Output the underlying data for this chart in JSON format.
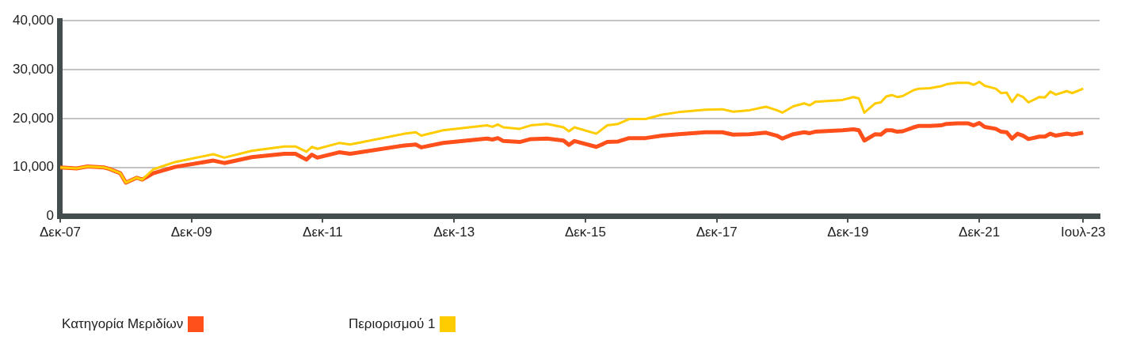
{
  "chart_data": {
    "type": "line",
    "x": [
      "2007-12",
      "2008-03",
      "2008-05",
      "2008-08",
      "2008-09",
      "2008-11",
      "2008-12",
      "2009-02",
      "2009-03",
      "2009-05",
      "2009-09",
      "2010-04",
      "2010-06",
      "2010-11",
      "2011-05",
      "2011-07",
      "2011-09",
      "2011-10",
      "2011-11",
      "2012-03",
      "2012-05",
      "2013-03",
      "2013-05",
      "2013-06",
      "2013-10",
      "2014-06",
      "2014-07",
      "2014-08",
      "2014-09",
      "2014-12",
      "2015-02",
      "2015-05",
      "2015-08",
      "2015-09",
      "2015-10",
      "2016-02",
      "2016-04",
      "2016-06",
      "2016-08",
      "2016-11",
      "2017-02",
      "2017-05",
      "2017-10",
      "2018-01",
      "2018-03",
      "2018-06",
      "2018-09",
      "2018-11",
      "2018-12",
      "2019-02",
      "2019-04",
      "2019-05",
      "2019-06",
      "2019-11",
      "2020-01",
      "2020-02",
      "2020-03",
      "2020-05",
      "2020-06",
      "2020-07",
      "2020-08",
      "2020-09",
      "2020-10",
      "2020-12",
      "2021-01",
      "2021-03",
      "2021-05",
      "2021-06",
      "2021-08",
      "2021-10",
      "2021-11",
      "2021-12",
      "2022-01",
      "2022-03",
      "2022-04",
      "2022-05",
      "2022-06",
      "2022-07",
      "2022-08",
      "2022-09",
      "2022-11",
      "2022-12",
      "2023-01",
      "2023-02",
      "2023-04",
      "2023-05",
      "2023-07"
    ],
    "series": [
      {
        "name": "Κατηγορία Μεριδίων",
        "color": "#ff4f1a",
        "values": [
          10000,
          9800,
          10200,
          10000,
          9700,
          8800,
          6900,
          7900,
          7500,
          8800,
          10100,
          11400,
          10900,
          12100,
          12800,
          12800,
          11600,
          12600,
          12000,
          13100,
          12800,
          14500,
          14700,
          14100,
          15000,
          15900,
          15700,
          16000,
          15400,
          15200,
          15800,
          15900,
          15500,
          14600,
          15400,
          14200,
          15200,
          15300,
          16000,
          16000,
          16500,
          16800,
          17200,
          17200,
          16700,
          16800,
          17100,
          16500,
          15900,
          16800,
          17200,
          17000,
          17300,
          17600,
          17800,
          17600,
          15500,
          16800,
          16700,
          17600,
          17600,
          17300,
          17400,
          18200,
          18500,
          18500,
          18600,
          18900,
          19000,
          19000,
          18600,
          19100,
          18300,
          17900,
          17300,
          17200,
          15900,
          16900,
          16500,
          15800,
          16300,
          16300,
          16900,
          16500,
          16900,
          16700,
          17100
        ]
      },
      {
        "name": "Περιορισμού 1",
        "color": "#ffcc00",
        "values": [
          10000,
          9800,
          10200,
          10000,
          9700,
          8800,
          6900,
          7900,
          7500,
          9600,
          11100,
          12700,
          12000,
          13400,
          14300,
          14300,
          13200,
          14200,
          13800,
          15000,
          14700,
          16900,
          17200,
          16500,
          17600,
          18600,
          18300,
          18800,
          18200,
          17900,
          18600,
          18900,
          18200,
          17400,
          18200,
          16900,
          18600,
          18900,
          19900,
          19900,
          20800,
          21300,
          21800,
          21900,
          21400,
          21700,
          22400,
          21700,
          21200,
          22500,
          23100,
          22700,
          23400,
          23800,
          24400,
          24100,
          21200,
          23100,
          23300,
          24500,
          24800,
          24400,
          24600,
          25800,
          26100,
          26200,
          26600,
          27000,
          27300,
          27300,
          26900,
          27500,
          26700,
          26100,
          25200,
          25300,
          23400,
          24900,
          24400,
          23300,
          24400,
          24300,
          25500,
          24900,
          25600,
          25200,
          26100
        ]
      }
    ],
    "xlim": [
      "2007-12",
      "2023-10"
    ],
    "xticks": [
      {
        "value": "2007-12",
        "label": "Δεκ-07"
      },
      {
        "value": "2009-12",
        "label": "Δεκ-09"
      },
      {
        "value": "2011-12",
        "label": "Δεκ-11"
      },
      {
        "value": "2013-12",
        "label": "Δεκ-13"
      },
      {
        "value": "2015-12",
        "label": "Δεκ-15"
      },
      {
        "value": "2017-12",
        "label": "Δεκ-17"
      },
      {
        "value": "2019-12",
        "label": "Δεκ-19"
      },
      {
        "value": "2021-12",
        "label": "Δεκ-21"
      },
      {
        "value": "2023-07",
        "label": "Ιουλ-23"
      }
    ],
    "ylim": [
      0,
      40000
    ],
    "yticks": [
      0,
      {
        "value": 10000,
        "label": "10,000"
      },
      {
        "value": 20000,
        "label": "20,000"
      },
      {
        "value": 30000,
        "label": "30,000"
      },
      {
        "value": 40000,
        "label": "40,000"
      }
    ],
    "grid": "y",
    "legend": "bottom",
    "marker": "none",
    "line_style": "solid"
  }
}
